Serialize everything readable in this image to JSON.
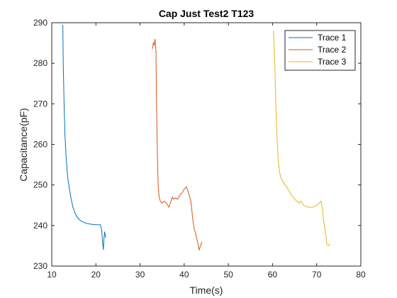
{
  "chart_data": {
    "type": "line",
    "title": "Cap Just Test2 T123",
    "xlabel": "Time(s)",
    "ylabel": "Capacitance(pF)",
    "xlim": [
      10,
      80
    ],
    "ylim": [
      230,
      290
    ],
    "xticks": [
      "10",
      "20",
      "30",
      "40",
      "50",
      "60",
      "70",
      "80"
    ],
    "yticks": [
      "230",
      "240",
      "250",
      "260",
      "270",
      "280",
      "290"
    ],
    "grid": false,
    "legend_position": "top-right",
    "series": [
      {
        "name": "Trace 1",
        "color": "#0072BD",
        "x": [
          12.5,
          12.6,
          12.8,
          13.0,
          13.3,
          13.6,
          14.0,
          14.4,
          14.8,
          15.3,
          15.8,
          16.5,
          17.2,
          18.0,
          19.0,
          20.0,
          21.0,
          21.3,
          21.5,
          21.7,
          21.8,
          22.0,
          22.2
        ],
        "y": [
          289.5,
          280,
          270,
          262,
          256,
          252,
          249,
          246.5,
          244.5,
          243,
          242,
          241.2,
          240.8,
          240.5,
          240.3,
          240.2,
          240.2,
          239,
          236,
          234,
          236.5,
          238.5,
          237
        ]
      },
      {
        "name": "Trace 2",
        "color": "#D95319",
        "x": [
          32.8,
          33.0,
          33.2,
          33.4,
          33.6,
          33.7,
          33.9,
          34.1,
          34.3,
          34.6,
          35.0,
          35.5,
          36.0,
          36.5,
          37.0,
          37.3,
          37.6,
          38.0,
          38.5,
          39.0,
          39.5,
          40.0,
          40.5,
          41.0,
          41.5,
          42.0,
          42.3,
          42.6,
          43.0,
          43.4,
          43.7,
          44.0
        ],
        "y": [
          283.5,
          285,
          284.5,
          286,
          283,
          272,
          258,
          250,
          247,
          246,
          245.5,
          246,
          245.5,
          244.5,
          246,
          247,
          246.5,
          246.8,
          246.5,
          247.5,
          248,
          249,
          249.5,
          248,
          246,
          241,
          239,
          238,
          236,
          234,
          235,
          236
        ]
      },
      {
        "name": "Trace 3",
        "color": "#EDB120",
        "x": [
          60.2,
          60.4,
          60.6,
          60.8,
          61.0,
          61.3,
          61.6,
          62.0,
          62.5,
          63.0,
          63.5,
          64.0,
          64.5,
          65.0,
          65.5,
          66.0,
          66.5,
          67.0,
          68.0,
          69.0,
          70.0,
          70.5,
          71.0,
          71.3,
          71.6,
          72.0,
          72.3,
          72.6,
          73.0
        ],
        "y": [
          288,
          284,
          276,
          268,
          262,
          256,
          253,
          251.5,
          250.5,
          249.8,
          249,
          248,
          247.2,
          246.5,
          246,
          245.5,
          246,
          245,
          244.5,
          244.5,
          245,
          245.5,
          246,
          244,
          241,
          238,
          235.5,
          235,
          235.5
        ]
      }
    ]
  }
}
